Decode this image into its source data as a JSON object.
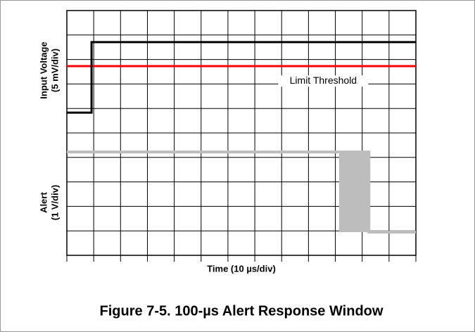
{
  "chart_data": {
    "type": "line",
    "caption": "Figure 7-5. 100-µs Alert Response Window",
    "xlabel": "Time (10 µs/div)",
    "ylabels": [
      "Input Voltage",
      "(5 mV/div)",
      "Alert",
      "(1 V/div)"
    ],
    "annotation": {
      "text": "Limit Threshold",
      "x": 9.55,
      "y": 7.12
    },
    "xlim": [
      0,
      13
    ],
    "ylim": [
      0,
      10
    ],
    "xticks": [
      0,
      1,
      2,
      3,
      4,
      5,
      6,
      7,
      8,
      9,
      10,
      11,
      12,
      13
    ],
    "yticks": [
      0,
      1,
      2,
      3,
      4,
      5,
      6,
      7,
      8,
      9,
      10
    ],
    "grid": true,
    "series": [
      {
        "color": "#ff0000",
        "width": 3,
        "x": [
          0,
          13
        ],
        "values": [
          7.73,
          7.73
        ]
      },
      {
        "color": "#000000",
        "width": 3,
        "x": [
          0,
          0.92,
          0.92,
          13
        ],
        "values": [
          5.83,
          5.83,
          8.71,
          8.71
        ]
      },
      {
        "color": "#bdbdbd",
        "width": 4,
        "x": [
          0,
          10.14,
          10.14,
          11.25,
          11.25,
          13
        ],
        "values": [
          4.22,
          4.22,
          4.22,
          4.22,
          0.95,
          0.95
        ]
      },
      {
        "color": "#bdbdbd",
        "fill": true,
        "x": [
          10.14,
          11.25
        ],
        "values": [
          4.22,
          4.22
        ],
        "base": [
          0.95,
          0.95
        ]
      }
    ]
  }
}
